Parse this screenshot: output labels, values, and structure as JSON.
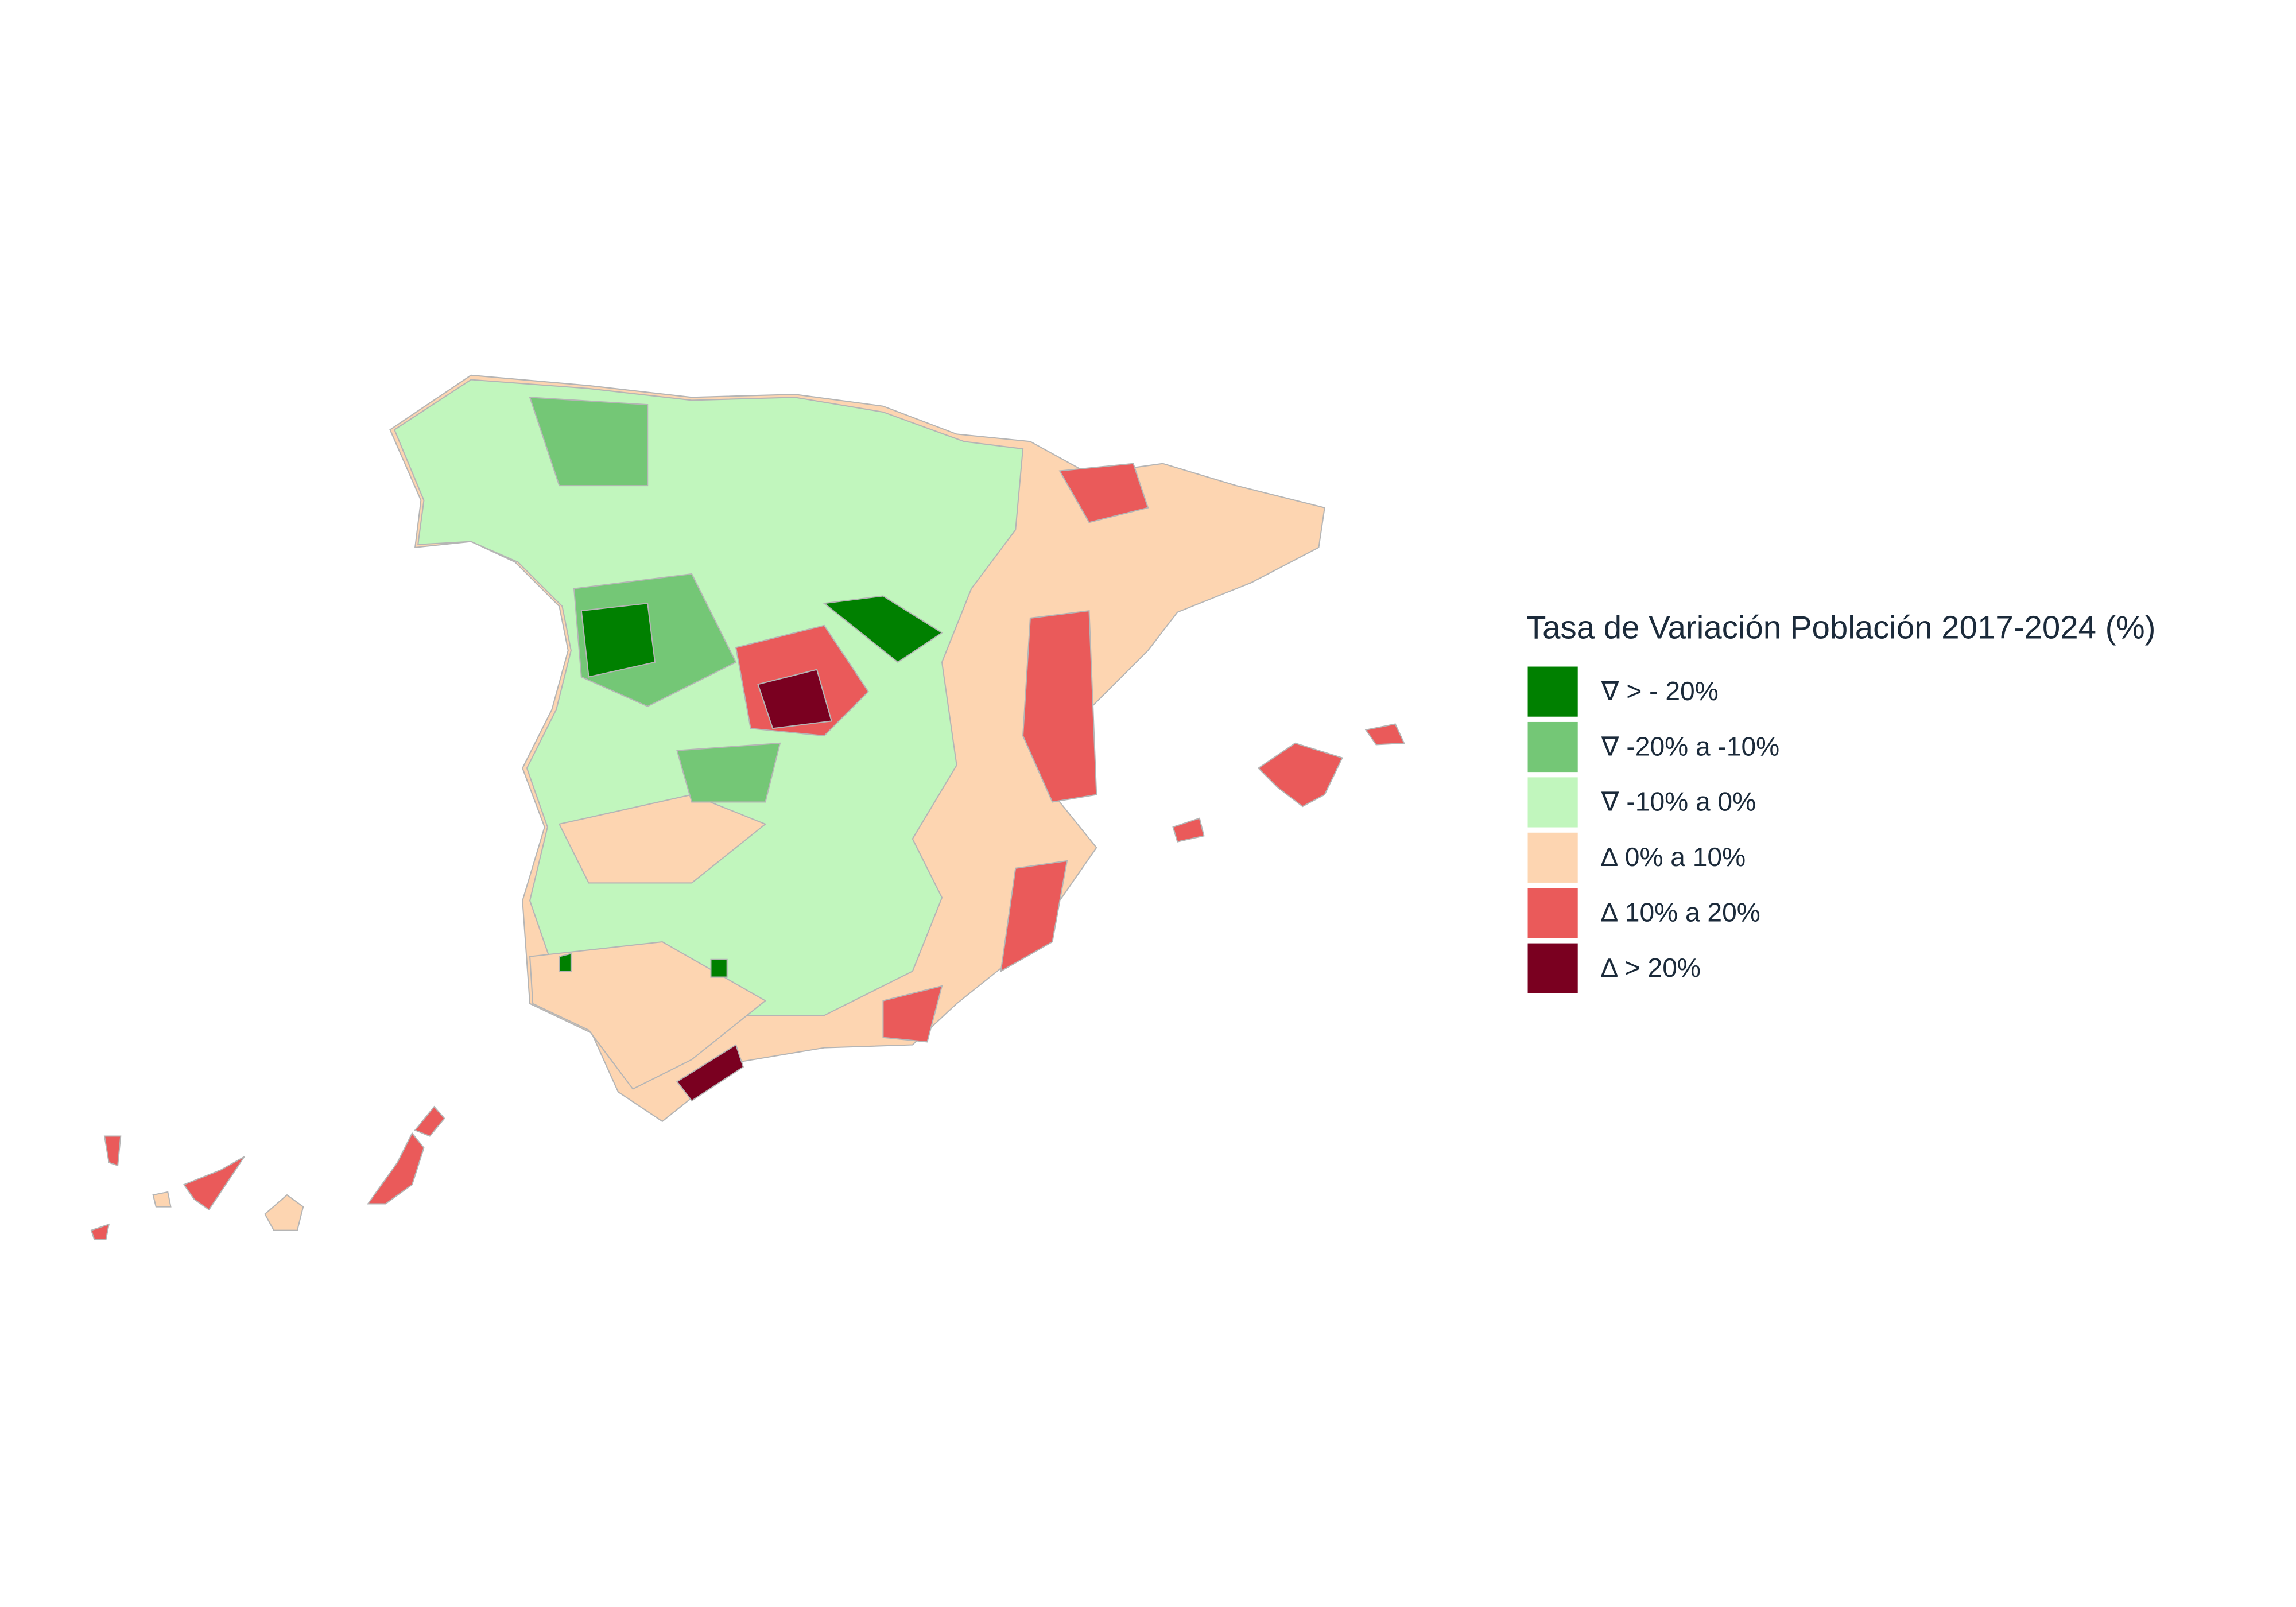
{
  "legend": {
    "title": "Tasa de Variación Población 2017-2024 (%)",
    "items": [
      {
        "label": "∇ > - 20%",
        "color": "#008000"
      },
      {
        "label": "∇ -20% a -10%",
        "color": "#74c776"
      },
      {
        "label": "∇ -10% a 0%",
        "color": "#c1f6bd"
      },
      {
        "label": "∆ 0% a 10%",
        "color": "#fdd5b1"
      },
      {
        "label": "∆ 10% a 20%",
        "color": "#ea5a5a"
      },
      {
        "label": "∆ > 20%",
        "color": "#7a0020"
      }
    ]
  }
}
